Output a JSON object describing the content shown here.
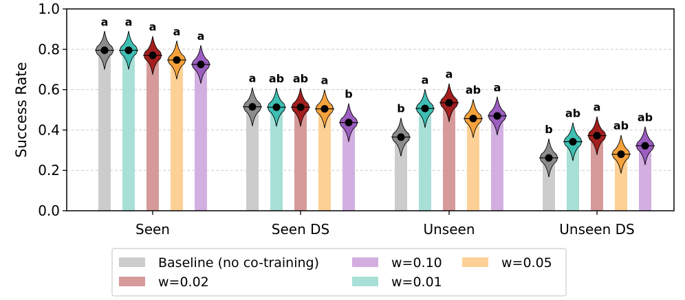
{
  "chart_data": {
    "type": "bar",
    "title": "",
    "xlabel": "",
    "ylabel": "Success Rate",
    "ylim": [
      0.0,
      1.0
    ],
    "yticks": [
      "0.0",
      "0.2",
      "0.4",
      "0.6",
      "0.8",
      "1.0"
    ],
    "grid": "horizontal-dashed",
    "categories": [
      "Seen",
      "Seen DS",
      "Unseen",
      "Unseen DS"
    ],
    "series": [
      {
        "name": "Baseline (no co-training)",
        "bar_color": "#cccccc",
        "violin_color": "#8c8c8c",
        "values": [
          0.795,
          0.515,
          0.365,
          0.262
        ],
        "labels": [
          "a",
          "a",
          "b",
          "b"
        ]
      },
      {
        "name": "w=0.01",
        "bar_color": "#a8e0d8",
        "violin_color": "#3fbfb3",
        "values": [
          0.795,
          0.513,
          0.507,
          0.342
        ],
        "labels": [
          "a",
          "ab",
          "a",
          "ab"
        ]
      },
      {
        "name": "w=0.02",
        "bar_color": "#d69a9a",
        "violin_color": "#a31f1f",
        "values": [
          0.77,
          0.513,
          0.535,
          0.372
        ],
        "labels": [
          "a",
          "ab",
          "a",
          "a"
        ]
      },
      {
        "name": "w=0.05",
        "bar_color": "#fdd096",
        "violin_color": "#f5a23c",
        "values": [
          0.747,
          0.505,
          0.457,
          0.28
        ],
        "labels": [
          "a",
          "a",
          "ab",
          "ab"
        ]
      },
      {
        "name": "w=0.10",
        "bar_color": "#d2afe0",
        "violin_color": "#9c5ec0",
        "values": [
          0.725,
          0.437,
          0.47,
          0.322
        ],
        "labels": [
          "a",
          "b",
          "a",
          "ab"
        ]
      }
    ],
    "legend": {
      "placement": "bottom-center",
      "order": [
        0,
        2,
        4,
        1,
        3
      ]
    }
  }
}
